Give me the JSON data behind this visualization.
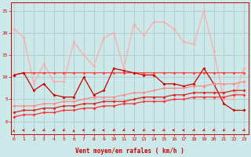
{
  "xlabel": "Vent moyen/en rafales ( km/h )",
  "bg_color": "#cce8e8",
  "grid_color": "#aacccc",
  "x_ticks": [
    0,
    1,
    2,
    3,
    4,
    5,
    6,
    7,
    8,
    9,
    10,
    11,
    12,
    13,
    14,
    15,
    16,
    17,
    18,
    19,
    20,
    21,
    22,
    23
  ],
  "y_ticks": [
    0,
    5,
    10,
    15,
    20,
    25
  ],
  "ylim": [
    -3,
    27
  ],
  "xlim": [
    -0.3,
    23.5
  ],
  "series": [
    {
      "color": "#ffaaaa",
      "lw": 0.9,
      "x": [
        0,
        1,
        2,
        3,
        4,
        5,
        6,
        7,
        8,
        9,
        10,
        11,
        12,
        13,
        14,
        15,
        16,
        17,
        18,
        19,
        20,
        21,
        22,
        23
      ],
      "y": [
        21,
        19,
        8.5,
        13,
        9,
        9,
        18,
        15,
        12.5,
        19,
        20,
        12,
        22,
        19.5,
        22.5,
        22.5,
        21,
        18,
        17.5,
        25,
        16,
        5,
        5,
        12
      ]
    },
    {
      "color": "#ff4444",
      "lw": 0.9,
      "x": [
        0,
        1,
        2,
        3,
        4,
        5,
        6,
        7,
        8,
        9,
        10,
        11,
        12,
        13,
        14,
        15,
        16,
        17,
        18,
        19,
        20,
        21,
        22,
        23
      ],
      "y": [
        10.5,
        11,
        11,
        11,
        11,
        11,
        11,
        11,
        11,
        11,
        11,
        11,
        11,
        11,
        11,
        11,
        11,
        11,
        11,
        11,
        11,
        11,
        11,
        11
      ]
    },
    {
      "color": "#cc0000",
      "lw": 0.9,
      "x": [
        0,
        1,
        2,
        3,
        4,
        5,
        6,
        7,
        8,
        9,
        10,
        11,
        12,
        13,
        14,
        15,
        16,
        17,
        18,
        19,
        20,
        21,
        22,
        23
      ],
      "y": [
        10.5,
        11,
        7,
        8.5,
        6,
        5.5,
        5.5,
        10,
        6,
        7,
        12,
        11.5,
        11,
        10.5,
        10.5,
        8.5,
        8.5,
        8,
        8.5,
        12,
        8.5,
        4,
        2.5,
        2.5
      ]
    },
    {
      "color": "#ff8888",
      "lw": 0.9,
      "x": [
        0,
        1,
        2,
        3,
        4,
        5,
        6,
        7,
        8,
        9,
        10,
        11,
        12,
        13,
        14,
        15,
        16,
        17,
        18,
        19,
        20,
        21,
        22,
        23
      ],
      "y": [
        3.5,
        3.5,
        3.5,
        4,
        4,
        4.5,
        4.5,
        5,
        5.5,
        5.5,
        5.5,
        6,
        6.5,
        6.5,
        7,
        7.5,
        7.5,
        7.5,
        8,
        8,
        8.5,
        8.5,
        8.5,
        9
      ]
    },
    {
      "color": "#dd2222",
      "lw": 0.9,
      "x": [
        0,
        1,
        2,
        3,
        4,
        5,
        6,
        7,
        8,
        9,
        10,
        11,
        12,
        13,
        14,
        15,
        16,
        17,
        18,
        19,
        20,
        21,
        22,
        23
      ],
      "y": [
        2.0,
        2.5,
        2.5,
        3.0,
        3.0,
        3.5,
        3.5,
        4.0,
        4.0,
        4.5,
        4.5,
        4.5,
        5.0,
        5.5,
        5.5,
        5.5,
        6.0,
        6.0,
        6.5,
        6.5,
        6.5,
        6.5,
        7.0,
        7.0
      ]
    },
    {
      "color": "#ff3333",
      "lw": 0.9,
      "x": [
        0,
        1,
        2,
        3,
        4,
        5,
        6,
        7,
        8,
        9,
        10,
        11,
        12,
        13,
        14,
        15,
        16,
        17,
        18,
        19,
        20,
        21,
        22,
        23
      ],
      "y": [
        1.0,
        1.5,
        1.5,
        2.0,
        2.0,
        2.5,
        2.5,
        3.0,
        3.0,
        3.5,
        3.5,
        4.0,
        4.0,
        4.5,
        4.5,
        4.5,
        5.0,
        5.0,
        5.5,
        5.5,
        5.5,
        5.5,
        6.0,
        6.0
      ]
    }
  ],
  "wind_dirs": [
    180,
    270,
    315,
    315,
    315,
    315,
    180,
    270,
    315,
    270,
    315,
    315,
    270,
    315,
    270,
    315,
    270,
    270,
    315,
    315,
    315,
    315,
    315,
    315
  ]
}
